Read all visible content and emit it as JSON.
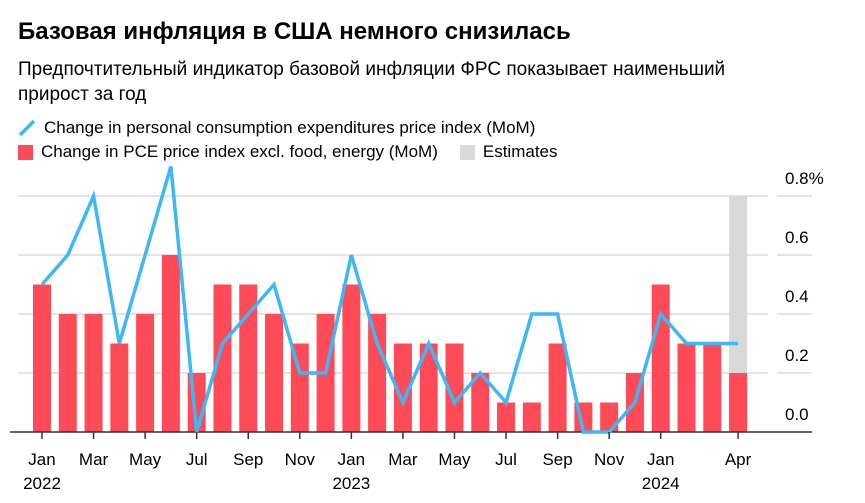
{
  "title": "Базовая инфляция в США немного снизилась",
  "subtitle": "Предпочтительный индикатор базовой инфляции ФРС показывает наименьший прирост за год",
  "legend": {
    "line": "Change in personal consumption expenditures price index (MoM)",
    "bars": "Change in PCE price index excl. food, energy (MoM)",
    "estimates": "Estimates"
  },
  "colors": {
    "line": "#3db8f5",
    "bars": "#ff4b57",
    "estimates": "#d9d9d9"
  },
  "chart_data": {
    "type": "bar+line",
    "months": [
      "Jan 2022",
      "Feb 2022",
      "Mar 2022",
      "Apr 2022",
      "May 2022",
      "Jun 2022",
      "Jul 2022",
      "Aug 2022",
      "Sep 2022",
      "Oct 2022",
      "Nov 2022",
      "Dec 2022",
      "Jan 2023",
      "Feb 2023",
      "Mar 2023",
      "Apr 2023",
      "May 2023",
      "Jun 2023",
      "Jul 2023",
      "Aug 2023",
      "Sep 2023",
      "Oct 2023",
      "Nov 2023",
      "Dec 2023",
      "Jan 2024",
      "Feb 2024",
      "Mar 2024",
      "Apr 2024"
    ],
    "series": [
      {
        "name": "Change in PCE price index excl. food, energy (MoM)",
        "type": "bar",
        "values": [
          0.5,
          0.4,
          0.4,
          0.3,
          0.4,
          0.6,
          0.2,
          0.5,
          0.5,
          0.4,
          0.3,
          0.4,
          0.5,
          0.4,
          0.3,
          0.3,
          0.3,
          0.2,
          0.1,
          0.1,
          0.3,
          0.1,
          0.1,
          0.2,
          0.5,
          0.3,
          0.3,
          0.2
        ]
      },
      {
        "name": "Change in personal consumption expenditures price index (MoM)",
        "type": "line",
        "values": [
          0.5,
          0.6,
          0.8,
          0.3,
          0.6,
          0.9,
          0.0,
          0.3,
          0.4,
          0.5,
          0.2,
          0.2,
          0.6,
          0.3,
          0.1,
          0.3,
          0.1,
          0.2,
          0.1,
          0.4,
          0.4,
          0.0,
          0.0,
          0.1,
          0.4,
          0.3,
          0.3,
          0.3
        ]
      }
    ],
    "estimates": {
      "month": "Apr 2024",
      "range": [
        0,
        0.8
      ]
    },
    "ylim": [
      0,
      0.8
    ],
    "yticks": [
      "0.0",
      "0.2",
      "0.4",
      "0.6",
      "0.8%"
    ],
    "xticks": [
      {
        "index": 0,
        "label": "Jan",
        "year": "2022"
      },
      {
        "index": 2,
        "label": "Mar"
      },
      {
        "index": 4,
        "label": "May"
      },
      {
        "index": 6,
        "label": "Jul"
      },
      {
        "index": 8,
        "label": "Sep"
      },
      {
        "index": 10,
        "label": "Nov"
      },
      {
        "index": 12,
        "label": "Jan",
        "year": "2023"
      },
      {
        "index": 14,
        "label": "Mar"
      },
      {
        "index": 16,
        "label": "May"
      },
      {
        "index": 18,
        "label": "Jul"
      },
      {
        "index": 20,
        "label": "Sep"
      },
      {
        "index": 22,
        "label": "Nov"
      },
      {
        "index": 24,
        "label": "Jan",
        "year": "2024"
      },
      {
        "index": 27,
        "label": "Apr"
      }
    ],
    "grid": true,
    "legend_position": "top"
  }
}
